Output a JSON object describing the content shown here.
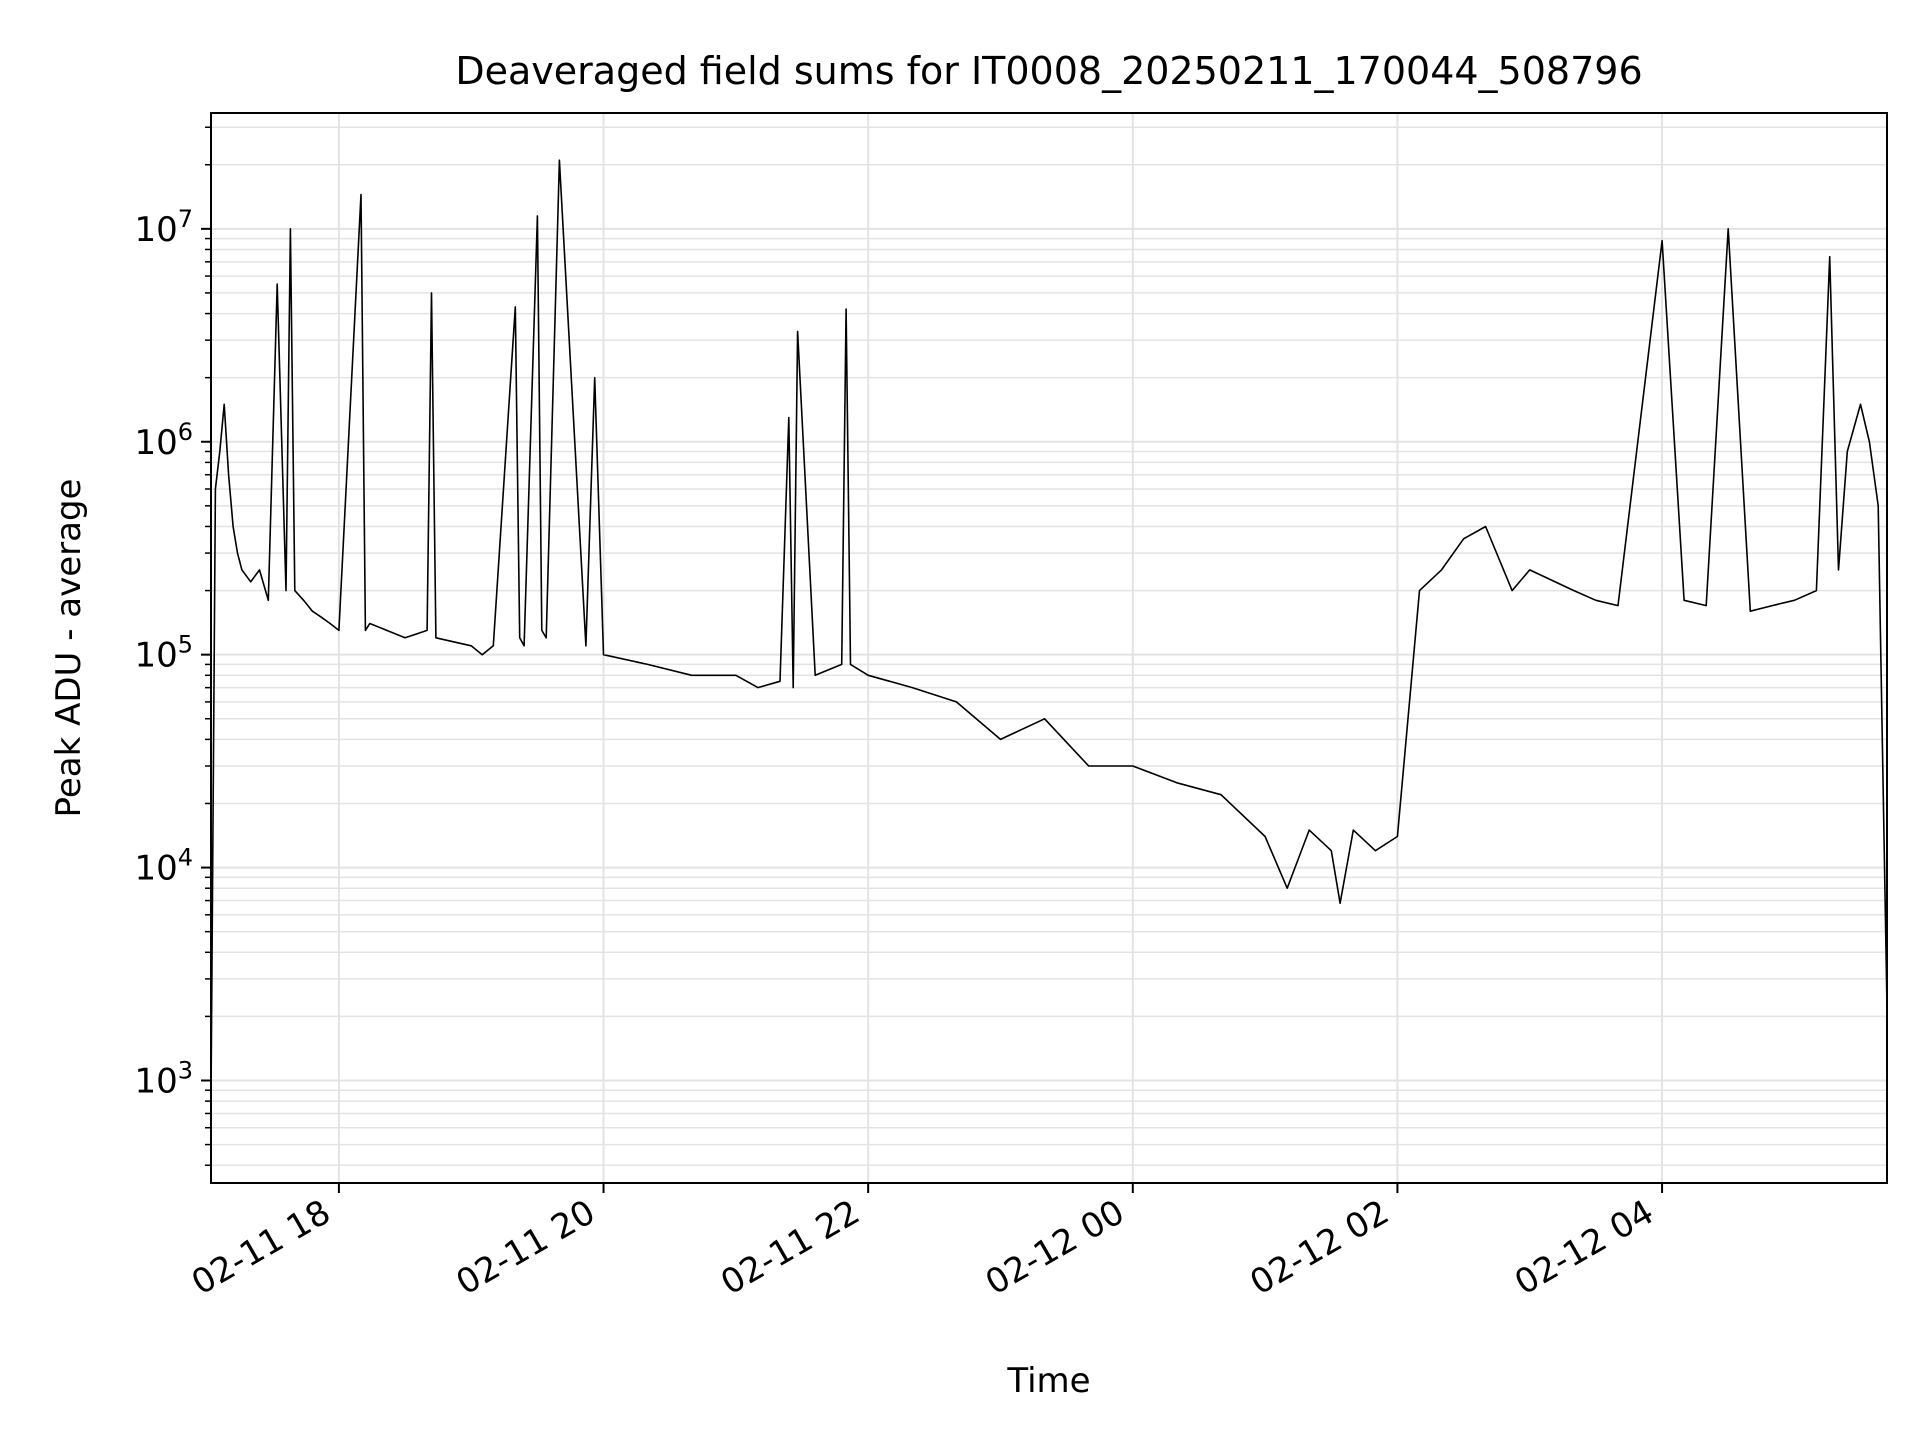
{
  "chart_data": {
    "type": "line",
    "title": "Deaveraged field sums for IT0008_20250211_170044_508796",
    "xlabel": "Time",
    "ylabel": "Peak ADU - average",
    "y_scale": "log",
    "ylim": [
      330,
      35000000
    ],
    "xlim": [
      "2025-02-11 17:02",
      "2025-02-12 05:42"
    ],
    "grid": true,
    "line_color": "#000000",
    "grid_color": "#e3e3e3",
    "x_ticks": [
      {
        "label": "02-11 18",
        "value": "2025-02-11 18:00"
      },
      {
        "label": "02-11 20",
        "value": "2025-02-11 20:00"
      },
      {
        "label": "02-11 22",
        "value": "2025-02-11 22:00"
      },
      {
        "label": "02-12 00",
        "value": "2025-02-12 00:00"
      },
      {
        "label": "02-12 02",
        "value": "2025-02-12 02:00"
      },
      {
        "label": "02-12 04",
        "value": "2025-02-12 04:00"
      }
    ],
    "y_ticks": [
      {
        "base": "10",
        "exp": "3",
        "value": 1000
      },
      {
        "base": "10",
        "exp": "4",
        "value": 10000
      },
      {
        "base": "10",
        "exp": "5",
        "value": 100000
      },
      {
        "base": "10",
        "exp": "6",
        "value": 1000000
      },
      {
        "base": "10",
        "exp": "7",
        "value": 10000000
      }
    ],
    "series": [
      {
        "x": [
          "2025-02-11 17:02",
          "2025-02-11 17:04",
          "2025-02-11 17:06",
          "2025-02-11 17:08",
          "2025-02-11 17:10",
          "2025-02-11 17:12",
          "2025-02-11 17:14",
          "2025-02-11 17:16",
          "2025-02-11 17:20",
          "2025-02-11 17:24",
          "2025-02-11 17:28",
          "2025-02-11 17:32",
          "2025-02-11 17:36",
          "2025-02-11 17:38",
          "2025-02-11 17:40",
          "2025-02-11 17:44",
          "2025-02-11 17:48",
          "2025-02-11 17:52",
          "2025-02-11 17:56",
          "2025-02-11 18:00",
          "2025-02-11 18:10",
          "2025-02-11 18:12",
          "2025-02-11 18:14",
          "2025-02-11 18:30",
          "2025-02-11 18:40",
          "2025-02-11 18:42",
          "2025-02-11 18:44",
          "2025-02-11 19:00",
          "2025-02-11 19:05",
          "2025-02-11 19:10",
          "2025-02-11 19:20",
          "2025-02-11 19:22",
          "2025-02-11 19:24",
          "2025-02-11 19:30",
          "2025-02-11 19:32",
          "2025-02-11 19:34",
          "2025-02-11 19:40",
          "2025-02-11 19:52",
          "2025-02-11 19:56",
          "2025-02-11 20:00",
          "2025-02-11 20:20",
          "2025-02-11 20:40",
          "2025-02-11 21:00",
          "2025-02-11 21:10",
          "2025-02-11 21:20",
          "2025-02-11 21:24",
          "2025-02-11 21:26",
          "2025-02-11 21:28",
          "2025-02-11 21:36",
          "2025-02-11 21:48",
          "2025-02-11 21:50",
          "2025-02-11 21:52",
          "2025-02-11 22:00",
          "2025-02-11 22:20",
          "2025-02-11 22:40",
          "2025-02-11 23:00",
          "2025-02-11 23:20",
          "2025-02-11 23:40",
          "2025-02-12 00:00",
          "2025-02-12 00:20",
          "2025-02-12 00:40",
          "2025-02-12 01:00",
          "2025-02-12 01:10",
          "2025-02-12 01:20",
          "2025-02-12 01:30",
          "2025-02-12 01:34",
          "2025-02-12 01:40",
          "2025-02-12 01:50",
          "2025-02-12 02:00",
          "2025-02-12 02:10",
          "2025-02-12 02:20",
          "2025-02-12 02:30",
          "2025-02-12 02:40",
          "2025-02-12 02:52",
          "2025-02-12 03:00",
          "2025-02-12 03:20",
          "2025-02-12 03:30",
          "2025-02-12 03:40",
          "2025-02-12 04:00",
          "2025-02-12 04:10",
          "2025-02-12 04:20",
          "2025-02-12 04:30",
          "2025-02-12 04:40",
          "2025-02-12 04:50",
          "2025-02-12 05:00",
          "2025-02-12 05:10",
          "2025-02-12 05:16",
          "2025-02-12 05:20",
          "2025-02-12 05:24",
          "2025-02-12 05:30",
          "2025-02-12 05:34",
          "2025-02-12 05:38",
          "2025-02-12 05:42"
        ],
        "y": [
          800,
          600000,
          900000,
          1500000,
          700000,
          400000,
          300000,
          250000,
          220000,
          250000,
          180000,
          5500000,
          200000,
          10000000,
          200000,
          180000,
          160000,
          150000,
          140000,
          130000,
          14500000,
          130000,
          140000,
          120000,
          130000,
          5000000,
          120000,
          110000,
          100000,
          110000,
          4300000,
          120000,
          110000,
          11500000,
          130000,
          120000,
          21000000,
          110000,
          2000000,
          100000,
          90000,
          80000,
          80000,
          70000,
          75000,
          1300000,
          70000,
          3300000,
          80000,
          90000,
          4200000,
          90000,
          80000,
          70000,
          60000,
          40000,
          50000,
          30000,
          30000,
          25000,
          22000,
          14000,
          8000,
          15000,
          12000,
          6800,
          15000,
          12000,
          14000,
          200000,
          250000,
          350000,
          400000,
          200000,
          250000,
          200000,
          180000,
          170000,
          8800000,
          180000,
          170000,
          10000000,
          160000,
          170000,
          180000,
          200000,
          7400000,
          250000,
          900000,
          1500000,
          1000000,
          500000,
          2200
        ]
      }
    ]
  }
}
